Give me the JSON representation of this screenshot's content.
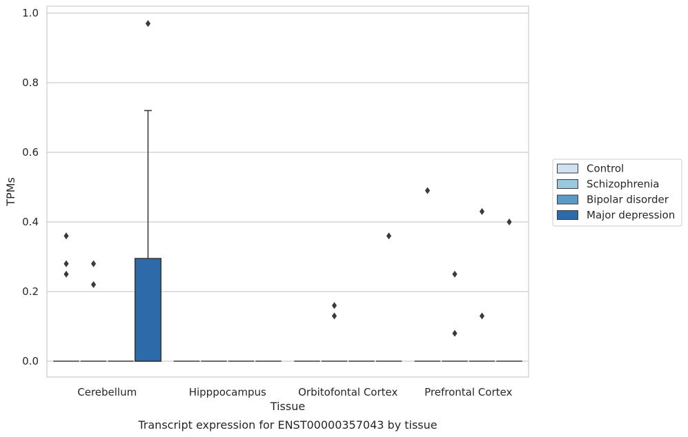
{
  "chart_data": {
    "type": "box",
    "xlabel": "Tissue",
    "ylabel": "TPMs",
    "caption": "Transcript expression for ENST00000357043 by tissue",
    "ylim": [
      -0.046,
      1.02
    ],
    "yticks": [
      "0.0",
      "0.2",
      "0.4",
      "0.6",
      "0.8",
      "1.0"
    ],
    "grid": true,
    "legend_position": "right",
    "categories": [
      "Cerebellum",
      "Hipppocampus",
      "Orbitofontal Cortex",
      "Prefrontal Cortex"
    ],
    "series": [
      {
        "name": "Control",
        "color": "#d0e2f1",
        "boxes": [
          {
            "q1": 0,
            "median": 0,
            "q3": 0,
            "whislo": 0,
            "whishi": 0,
            "fliers": [
              0.36,
              0.28,
              0.25
            ]
          },
          {
            "q1": 0,
            "median": 0,
            "q3": 0,
            "whislo": 0,
            "whishi": 0,
            "fliers": []
          },
          {
            "q1": 0,
            "median": 0,
            "q3": 0,
            "whislo": 0,
            "whishi": 0,
            "fliers": []
          },
          {
            "q1": 0,
            "median": 0,
            "q3": 0,
            "whislo": 0,
            "whishi": 0,
            "fliers": [
              0.49
            ]
          }
        ]
      },
      {
        "name": "Schizophrenia",
        "color": "#9ac8e0",
        "boxes": [
          {
            "q1": 0,
            "median": 0,
            "q3": 0,
            "whislo": 0,
            "whishi": 0,
            "fliers": [
              0.28,
              0.22
            ]
          },
          {
            "q1": 0,
            "median": 0,
            "q3": 0,
            "whislo": 0,
            "whishi": 0,
            "fliers": []
          },
          {
            "q1": 0,
            "median": 0,
            "q3": 0,
            "whislo": 0,
            "whishi": 0,
            "fliers": [
              0.16,
              0.13
            ]
          },
          {
            "q1": 0,
            "median": 0,
            "q3": 0,
            "whislo": 0,
            "whishi": 0,
            "fliers": [
              0.25,
              0.08
            ]
          }
        ]
      },
      {
        "name": "Bipolar disorder",
        "color": "#5a9ac9",
        "boxes": [
          {
            "q1": 0,
            "median": 0,
            "q3": 0,
            "whislo": 0,
            "whishi": 0,
            "fliers": []
          },
          {
            "q1": 0,
            "median": 0,
            "q3": 0,
            "whislo": 0,
            "whishi": 0,
            "fliers": []
          },
          {
            "q1": 0,
            "median": 0,
            "q3": 0,
            "whislo": 0,
            "whishi": 0,
            "fliers": []
          },
          {
            "q1": 0,
            "median": 0,
            "q3": 0,
            "whislo": 0,
            "whishi": 0,
            "fliers": [
              0.43,
              0.13
            ]
          }
        ]
      },
      {
        "name": "Major depression",
        "color": "#2c6aa9",
        "boxes": [
          {
            "q1": 0,
            "median": 0,
            "q3": 0.295,
            "whislo": 0,
            "whishi": 0.72,
            "fliers": [
              0.97
            ]
          },
          {
            "q1": 0,
            "median": 0,
            "q3": 0,
            "whislo": 0,
            "whishi": 0,
            "fliers": []
          },
          {
            "q1": 0,
            "median": 0,
            "q3": 0,
            "whislo": 0,
            "whishi": 0,
            "fliers": [
              0.36
            ]
          },
          {
            "q1": 0,
            "median": 0,
            "q3": 0,
            "whislo": 0,
            "whishi": 0,
            "fliers": [
              0.4
            ]
          }
        ]
      }
    ]
  }
}
